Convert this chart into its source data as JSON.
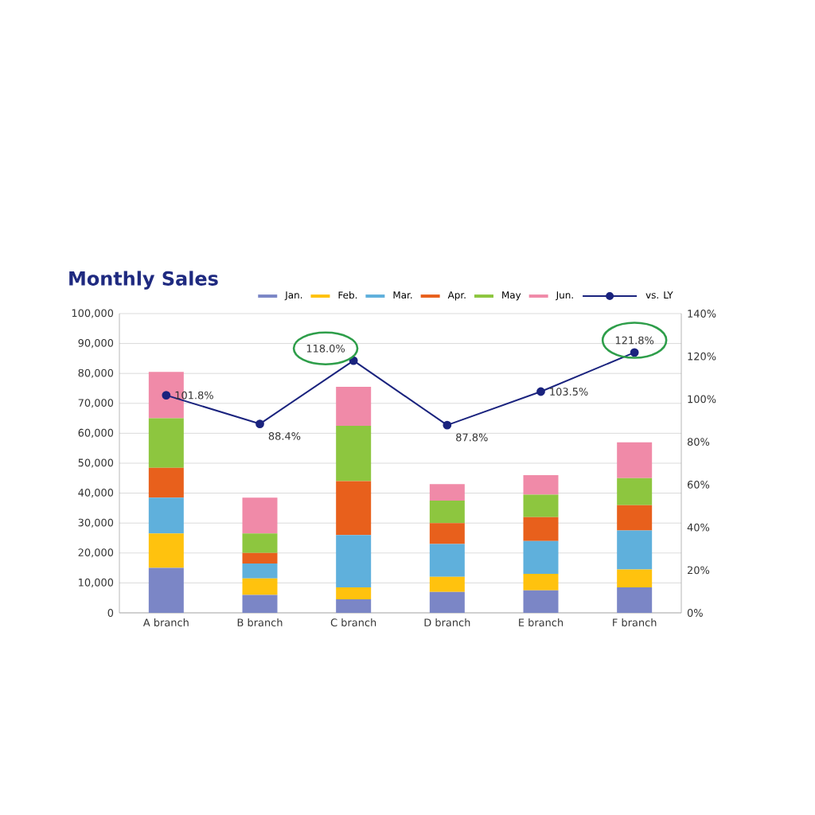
{
  "chart_data": {
    "type": "bar",
    "stacked": true,
    "title": "Monthly Sales",
    "categories": [
      "A branch",
      "B branch",
      "C branch",
      "D branch",
      "E branch",
      "F branch"
    ],
    "series": [
      {
        "name": "Jan.",
        "color": "#7b86c6",
        "values": [
          15000,
          6000,
          4500,
          7000,
          7500,
          8500
        ]
      },
      {
        "name": "Feb.",
        "color": "#ffc20e",
        "values": [
          11500,
          5500,
          4000,
          5000,
          5500,
          6000
        ]
      },
      {
        "name": "Mar.",
        "color": "#5fb0dc",
        "values": [
          12000,
          5000,
          17500,
          11000,
          11000,
          13000
        ]
      },
      {
        "name": "Apr.",
        "color": "#e8601c",
        "values": [
          10000,
          3500,
          18000,
          7000,
          8000,
          8500
        ]
      },
      {
        "name": "May",
        "color": "#8dc63f",
        "values": [
          16500,
          6500,
          18500,
          7500,
          7500,
          9000
        ]
      },
      {
        "name": "Jun.",
        "color": "#f08aa8",
        "values": [
          15500,
          12000,
          13000,
          5500,
          6500,
          12000
        ]
      },
      {
        "name": "vs. LY",
        "type": "line",
        "axis": "y2",
        "marker": "circle",
        "color": "#1a237e",
        "values": [
          101.8,
          88.4,
          118.0,
          87.8,
          103.5,
          121.8
        ],
        "value_labels": [
          "101.8%",
          "88.4%",
          "118.0%",
          "87.8%",
          "103.5%",
          "121.8%"
        ]
      }
    ],
    "ylim": [
      0,
      100000
    ],
    "yticks": [
      0,
      {
        "value": 10000,
        "label": "10,000"
      },
      {
        "value": 20000,
        "label": "20,000"
      },
      {
        "value": 30000,
        "label": "30,000"
      },
      {
        "value": 40000,
        "label": "40,000"
      },
      {
        "value": 50000,
        "label": "50,000"
      },
      {
        "value": 60000,
        "label": "60,000"
      },
      {
        "value": 70000,
        "label": "70,000"
      },
      {
        "value": 80000,
        "label": "80,000"
      },
      {
        "value": 90000,
        "label": "90,000"
      },
      {
        "value": 100000,
        "label": "100,000"
      }
    ],
    "y2lim": [
      0,
      140
    ],
    "y2ticks": [
      {
        "value": 0,
        "label": "0%"
      },
      {
        "value": 20,
        "label": "20%"
      },
      {
        "value": 40,
        "label": "40%"
      },
      {
        "value": 60,
        "label": "60%"
      },
      {
        "value": 80,
        "label": "80%"
      },
      {
        "value": 100,
        "label": "100%"
      },
      {
        "value": 120,
        "label": "120%"
      },
      {
        "value": 140,
        "label": "140%"
      }
    ],
    "grid": "y",
    "legend": "top right"
  }
}
